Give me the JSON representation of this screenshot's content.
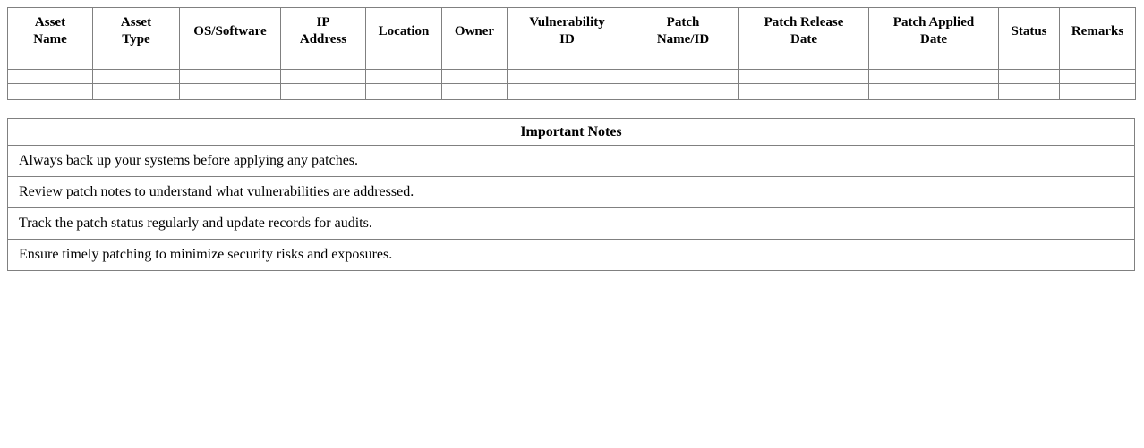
{
  "patch_table": {
    "headers": [
      "Asset\nName",
      "Asset\nType",
      "OS/Software",
      "IP\nAddress",
      "Location",
      "Owner",
      "Vulnerability\nID",
      "Patch\nName/ID",
      "Patch Release\nDate",
      "Patch Applied\nDate",
      "Status",
      "Remarks"
    ],
    "empty_row_count": 3
  },
  "notes_table": {
    "title": "Important Notes",
    "notes": [
      "Always back up your systems before applying any patches.",
      "Review patch notes to understand what vulnerabilities are addressed.",
      "Track the patch status regularly and update records for audits.",
      "Ensure timely patching to minimize security risks and exposures."
    ]
  },
  "colors": {
    "border": "#808080",
    "text": "#000000",
    "background": "#ffffff"
  }
}
